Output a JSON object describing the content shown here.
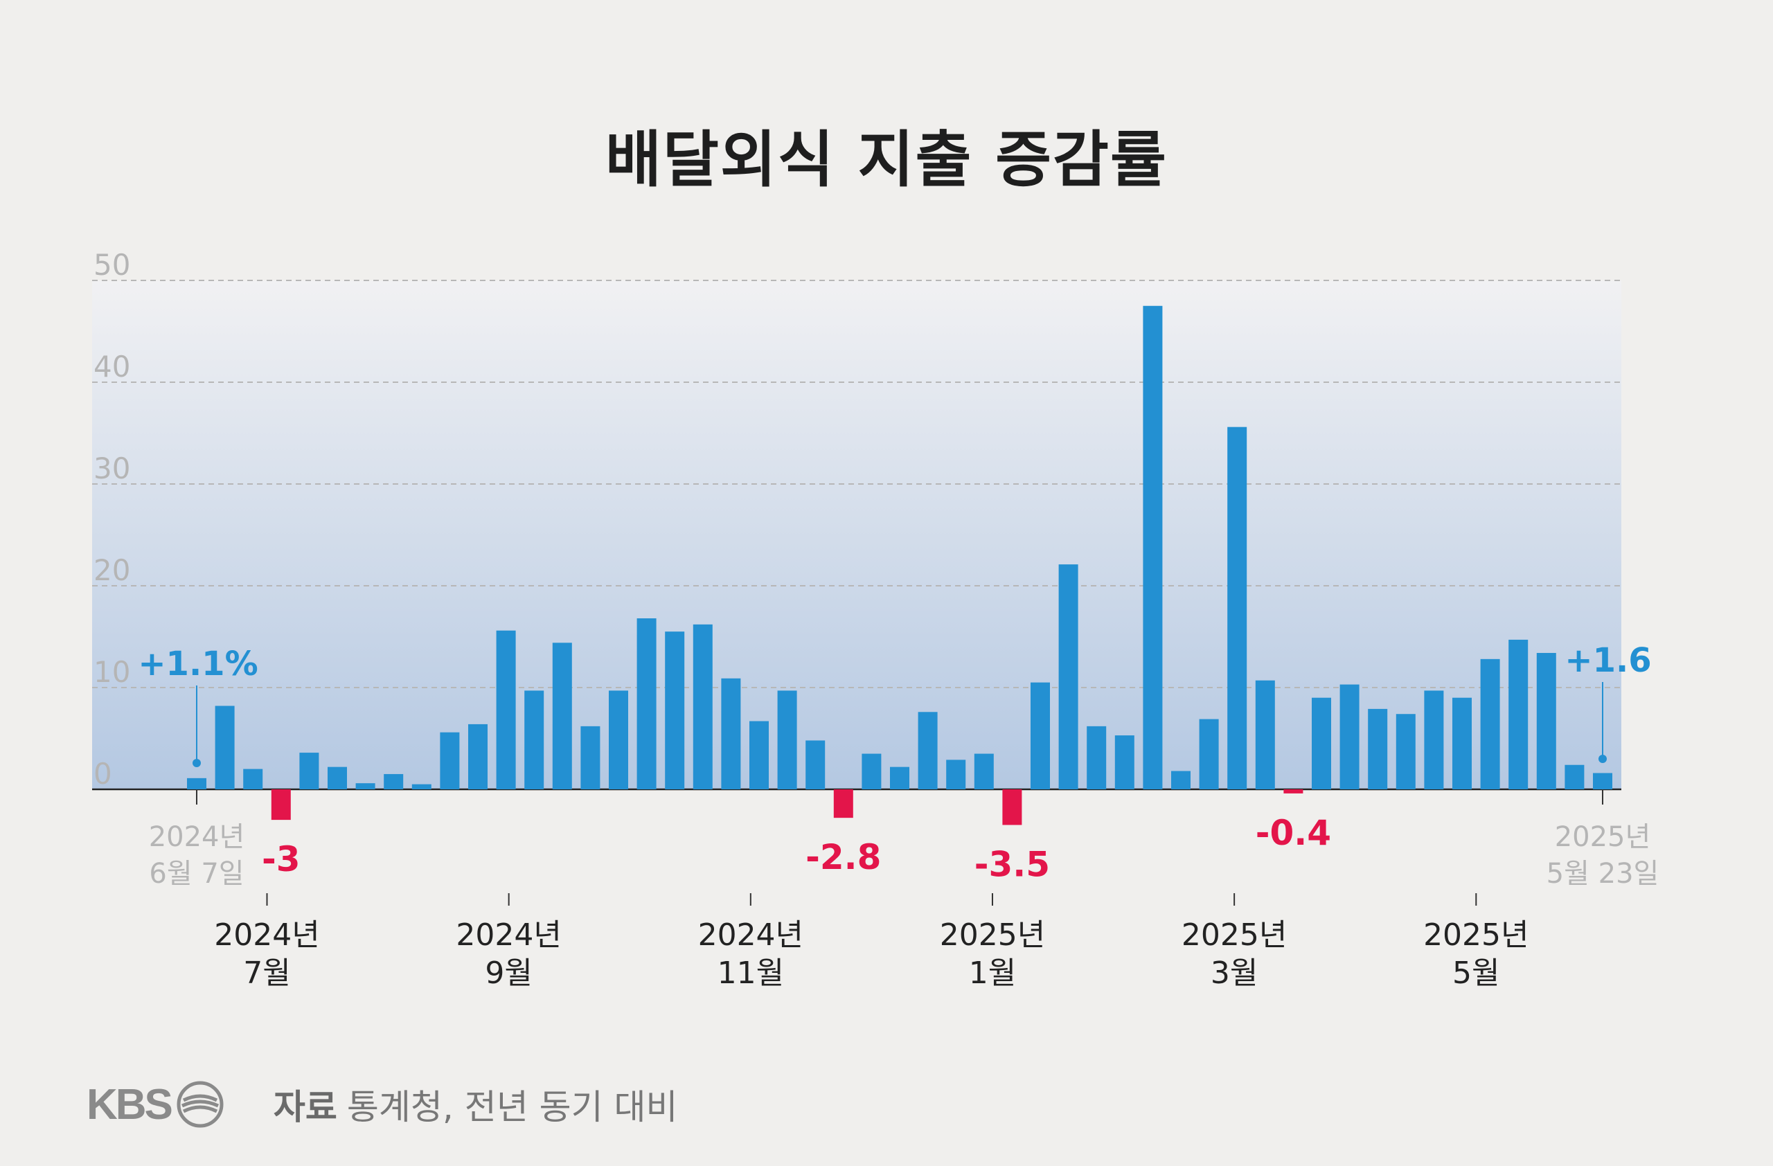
{
  "title": "배달외식 지출 증감률",
  "source": {
    "label": "자료",
    "text": "통계청, 전년 동기 대비"
  },
  "logo": {
    "text": "KBS"
  },
  "colors": {
    "positive": "#2390d2",
    "negative": "#e3154a",
    "axis_tick": "#b5b5b5",
    "grid": "#b7b7b7"
  },
  "chart_data": {
    "type": "bar",
    "title": "배달외식 지출 증감률",
    "ylim": [
      -5,
      50
    ],
    "y_ticks": [
      "0",
      "10",
      "20",
      "30",
      "40",
      "50"
    ],
    "grid": true,
    "values": [
      1.1,
      8.2,
      2.0,
      -3,
      3.6,
      2.2,
      0.6,
      1.5,
      0.5,
      5.6,
      6.4,
      15.6,
      9.7,
      14.4,
      6.2,
      9.7,
      16.8,
      15.5,
      16.2,
      10.9,
      6.7,
      9.7,
      4.8,
      -2.8,
      3.5,
      2.2,
      7.6,
      2.9,
      3.5,
      -3.5,
      10.5,
      22.1,
      6.2,
      5.3,
      47.5,
      1.8,
      6.9,
      35.6,
      10.7,
      -0.4,
      9.0,
      10.3,
      7.9,
      7.4,
      9.7,
      9.0,
      12.8,
      14.7,
      13.4,
      2.4,
      1.6
    ],
    "x_ticks": [
      {
        "year": "2024년",
        "month": "7월"
      },
      {
        "year": "2024년",
        "month": "9월"
      },
      {
        "year": "2024년",
        "month": "11월"
      },
      {
        "year": "2025년",
        "month": "1월"
      },
      {
        "year": "2025년",
        "month": "3월"
      },
      {
        "year": "2025년",
        "month": "5월"
      }
    ],
    "start_date": {
      "year": "2024년",
      "day": "6월 7일"
    },
    "end_date": {
      "year": "2025년",
      "day": "5월 23일"
    },
    "annotations": {
      "first": "+1.1%",
      "last": "+1.6",
      "negatives": [
        "-3",
        "-2.8",
        "-3.5",
        "-0.4"
      ]
    }
  }
}
